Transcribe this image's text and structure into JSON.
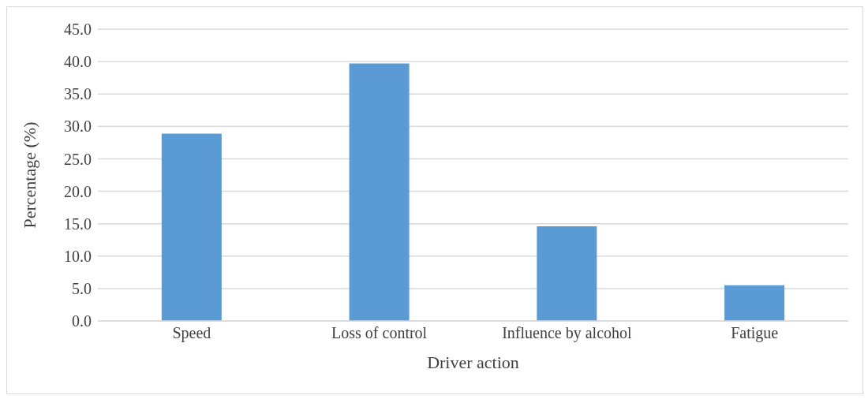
{
  "chart_data": {
    "type": "bar",
    "xlabel": "Driver action",
    "ylabel": "Percentage (%)",
    "categories": [
      "Speed",
      "Loss of control",
      "Influence by alcohol",
      "Fatigue"
    ],
    "values": [
      28.9,
      39.7,
      14.6,
      5.5
    ],
    "color": "#5b9bd5",
    "ylim": [
      0,
      45
    ],
    "yticks": [
      {
        "value": 0,
        "label": "0.0"
      },
      {
        "value": 5,
        "label": "5.0"
      },
      {
        "value": 10,
        "label": "10.0"
      },
      {
        "value": 15,
        "label": "15.0"
      },
      {
        "value": 20,
        "label": "20.0"
      },
      {
        "value": 25,
        "label": "25.0"
      },
      {
        "value": 30,
        "label": "30.0"
      },
      {
        "value": 35,
        "label": "35.0"
      },
      {
        "value": 40,
        "label": "40.0"
      },
      {
        "value": 45,
        "label": "45.0"
      }
    ],
    "grid": "y",
    "legend": false
  }
}
